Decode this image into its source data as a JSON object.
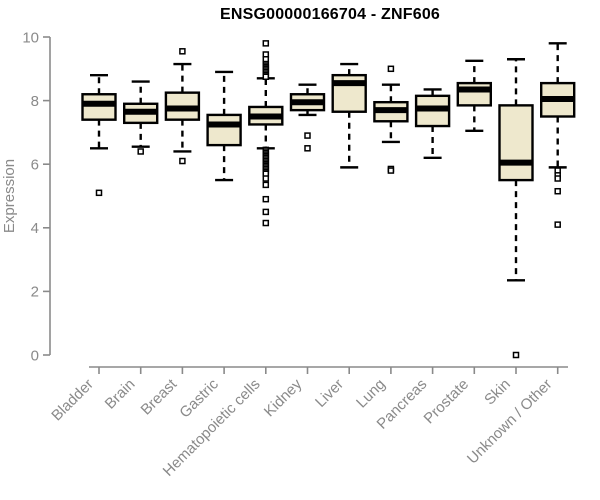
{
  "chart_data": {
    "type": "boxplot",
    "title": "ENSG00000166704 - ZNF606",
    "xlabel": "",
    "ylabel": "Expression",
    "ylim": [
      0,
      10
    ],
    "yticks": [
      0,
      2,
      4,
      6,
      8,
      10
    ],
    "grid": false,
    "legend": null,
    "categories": [
      "Bladder",
      "Brain",
      "Breast",
      "Gastric",
      "Hematopoietic cells",
      "Kidney",
      "Liver",
      "Lung",
      "Pancreas",
      "Prostate",
      "Skin",
      "Unknown / Other"
    ],
    "series": [
      {
        "category": "Bladder",
        "whisker_low": 6.5,
        "q1": 7.4,
        "median": 7.9,
        "q3": 8.2,
        "whisker_high": 8.8,
        "outliers": [
          5.1
        ]
      },
      {
        "category": "Brain",
        "whisker_low": 6.55,
        "q1": 7.3,
        "median": 7.65,
        "q3": 7.9,
        "whisker_high": 8.6,
        "outliers": [
          6.4
        ]
      },
      {
        "category": "Breast",
        "whisker_low": 6.4,
        "q1": 7.4,
        "median": 7.75,
        "q3": 8.25,
        "whisker_high": 9.15,
        "outliers": [
          9.55,
          6.1
        ]
      },
      {
        "category": "Gastric",
        "whisker_low": 5.5,
        "q1": 6.6,
        "median": 7.25,
        "q3": 7.55,
        "whisker_high": 8.9,
        "outliers": []
      },
      {
        "category": "Hematopoietic cells",
        "whisker_low": 6.5,
        "q1": 7.25,
        "median": 7.5,
        "q3": 7.8,
        "whisker_high": 8.7,
        "outliers": [
          9.8,
          9.45,
          9.3,
          9.15,
          9.1,
          9.05,
          9.0,
          8.95,
          8.9,
          8.85,
          8.8,
          8.75,
          6.45,
          6.4,
          6.35,
          6.3,
          6.25,
          6.2,
          6.15,
          6.1,
          6.05,
          6.0,
          5.95,
          5.9,
          5.85,
          5.8,
          5.75,
          5.7,
          5.55,
          5.35,
          4.9,
          4.5,
          4.15
        ]
      },
      {
        "category": "Kidney",
        "whisker_low": 7.55,
        "q1": 7.7,
        "median": 7.95,
        "q3": 8.2,
        "whisker_high": 8.5,
        "outliers": [
          6.9,
          6.5
        ]
      },
      {
        "category": "Liver",
        "whisker_low": 5.9,
        "q1": 7.65,
        "median": 8.55,
        "q3": 8.8,
        "whisker_high": 9.15,
        "outliers": []
      },
      {
        "category": "Lung",
        "whisker_low": 6.7,
        "q1": 7.35,
        "median": 7.7,
        "q3": 7.95,
        "whisker_high": 8.5,
        "outliers": [
          9.0,
          5.85,
          5.8
        ]
      },
      {
        "category": "Pancreas",
        "whisker_low": 6.2,
        "q1": 7.2,
        "median": 7.75,
        "q3": 8.15,
        "whisker_high": 8.35,
        "outliers": []
      },
      {
        "category": "Prostate",
        "whisker_low": 7.05,
        "q1": 7.85,
        "median": 8.35,
        "q3": 8.55,
        "whisker_high": 9.25,
        "outliers": []
      },
      {
        "category": "Skin",
        "whisker_low": 2.35,
        "q1": 5.5,
        "median": 6.05,
        "q3": 7.85,
        "whisker_high": 9.3,
        "outliers": [
          0.0
        ]
      },
      {
        "category": "Unknown / Other",
        "whisker_low": 5.9,
        "q1": 7.5,
        "median": 8.05,
        "q3": 8.55,
        "whisker_high": 9.8,
        "outliers": [
          5.8,
          5.65,
          5.55,
          5.15,
          4.1
        ]
      }
    ],
    "colors": {
      "box_fill": "#EEE8CD",
      "box_border": "#000000",
      "median": "#000000",
      "whisker": "#000000",
      "outlier_stroke": "#000000",
      "outlier_fill": "#FFFFFF",
      "axis": "#8A8A8A",
      "tick_label": "#8A8A8A",
      "axis_label": "#8A8A8A",
      "title": "#000000",
      "background": "#FFFFFF"
    }
  }
}
